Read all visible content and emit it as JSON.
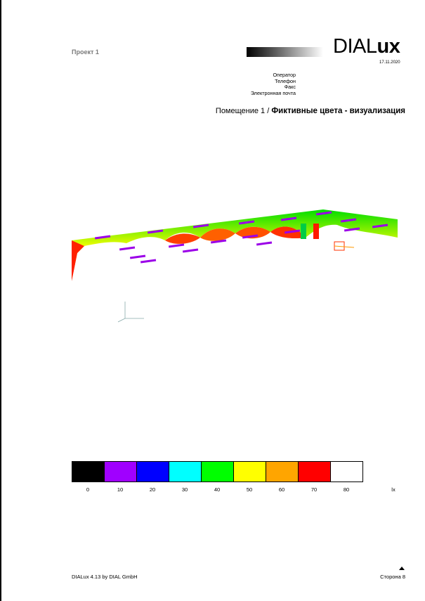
{
  "header": {
    "project": "Проект 1",
    "logo_thin": "DIAL",
    "logo_bold": "ux",
    "date": "17.11.2020"
  },
  "contact": {
    "operator": "Оператор",
    "phone": "Телефон",
    "fax": "Факс",
    "email": "Электронная почта"
  },
  "title": {
    "room": "Помещение 1 / ",
    "view": "Фиктивные цвета - визуализация"
  },
  "scale": {
    "colors": [
      "#000000",
      "#a000ff",
      "#0000ff",
      "#00ffff",
      "#00ff00",
      "#ffff00",
      "#ffa500",
      "#ff0000",
      "#ffffff"
    ],
    "labels": [
      "0",
      "10",
      "20",
      "30",
      "40",
      "50",
      "60",
      "70",
      "80"
    ],
    "unit": "lx"
  },
  "footer": {
    "software": "DIALux 4.13 by DIAL GmbH",
    "page": "Сторона 8"
  }
}
